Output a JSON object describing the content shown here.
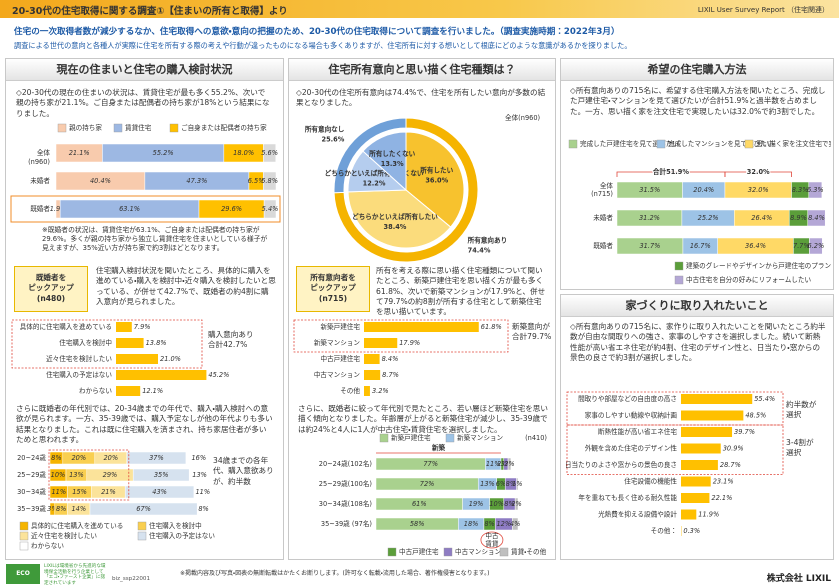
{
  "header": {
    "title": "20-30代の住宅取得に関する調査①【住まいの所有と取得】より",
    "brand": "LIXIL User Survey Report （住宅関連）"
  },
  "intro": [
    "住宅の一次取得者数が減少するなか、住宅取得への意欲・意向の把握のため、20-30代の住宅取得について調査を行いました。（調査実施時期：2022年3月）",
    "調査による世代の意向と各種人が実際に住宅を所有する際の考えや行動が違ったものになる場合も多くありますが、住宅所有に対する想いとして根底にどのような意識があるかを探りました。"
  ],
  "left": {
    "title": "現在の住まいと住宅の購入検討状況",
    "text": "◇20-30代の現在の住まいの状況は、賃貸住宅が最も多く55.2%、次いで親の持ち家が21.1%。ご自身または配偶者の持ち家が18%という結果になりました。",
    "chart1": {
      "categories": [
        "全体",
        "未婚者",
        "既婚者"
      ],
      "n": "(n960)",
      "xlim": [
        0,
        100
      ],
      "series": [
        {
          "name": "親の持ち家",
          "color": "#f8cbad",
          "values": [
            21.1,
            40.4,
            1.9
          ],
          "value_labels": [
            "21.1%",
            "40.4%",
            "1.9%"
          ]
        },
        {
          "name": "賃貸住宅",
          "color": "#9db8e3",
          "values": [
            55.2,
            47.3,
            63.1
          ],
          "value_labels": [
            "55.2%",
            "47.3%",
            "63.1%"
          ]
        },
        {
          "name": "ご自身または配偶者の持ち家",
          "color": "#ffc000",
          "values": [
            18.0,
            6.5,
            29.6
          ],
          "value_labels": [
            "18.0%",
            "6.5%",
            "29.6%"
          ]
        },
        {
          "color": "#d9d9d9",
          "values": [
            5.6,
            5.8,
            5.4
          ],
          "value_labels": [
            "5.6%",
            "5.8%",
            "5.4%"
          ]
        }
      ]
    },
    "note": "※既婚者の状況は、賃貸住宅が63.1%、ご自身または配偶者の持ち家が29.6%。多くが親の持ち家から独立し賃貸住宅を住まいとしている様子が見えますが、35%近い方が持ち家で約3割ほどとなります。",
    "badge": "既婚者を\nピックアップ\n(n480)",
    "pickup": "住宅購入検討状況を聞いたところ、具体的に購入を進めている・購入を検討中・近々購入を検討したいと思っている、が併せて42.7%で、既婚者の約4割に購入意向が見られました。",
    "chart2": {
      "categories": [
        "具体的に住宅購入を進めている",
        "住宅購入を検討中",
        "近々住宅を検討したい",
        "住宅購入の予定はない",
        "わからない"
      ],
      "values": [
        7.9,
        13.8,
        21.0,
        45.2,
        12.1
      ],
      "value_labels": [
        "7.9%",
        "13.8%",
        "21.0%",
        "45.2%",
        "12.1%"
      ],
      "color": "#ffc000",
      "xlim": [
        0,
        60
      ],
      "callout": "購入意向あり\n合計42.7%"
    },
    "text2": "さらに既婚者の年代別では、20-34歳までの年代で、購入・購入検討への意欲が見られます。一方、35-39歳では、購入予定なしが他の年代よりも多い結果となりました。これは既に住宅購入を済まされ、持ち家居住者が多いためと思われます。",
    "chart3": {
      "categories": [
        "20~24歳",
        "25~29歳",
        "30~34歳",
        "35~39歳"
      ],
      "xlim": [
        0,
        100
      ],
      "series": [
        {
          "name": "具体的に住宅購入を進めている",
          "color": "#f5b400",
          "values": [
            8,
            10,
            11,
            3
          ],
          "value_labels": [
            "8%",
            "10%",
            "11%",
            "3%"
          ]
        },
        {
          "name": "住宅購入を検討中",
          "color": "#f9cf50",
          "values": [
            20,
            13,
            15,
            8
          ],
          "value_labels": [
            "20%",
            "13%",
            "15%",
            "8%"
          ]
        },
        {
          "name": "近々住宅を検討したい",
          "color": "#fbe39a",
          "values": [
            20,
            29,
            21,
            14
          ],
          "value_labels": [
            "20%",
            "29%",
            "21%",
            "14%"
          ]
        },
        {
          "name": "住宅購入の予定はない",
          "color": "#d6e2ef",
          "values": [
            37,
            35,
            43,
            67
          ],
          "value_labels": [
            "37%",
            "35%",
            "43%",
            "67%"
          ]
        },
        {
          "name": "わからない",
          "color": "#ffffff",
          "values": [
            16,
            13,
            11,
            8
          ],
          "value_labels": [
            "16%",
            "13%",
            "11%",
            "8%"
          ]
        }
      ],
      "callout": "34歳までの各年代、購入意欲ありが、約半数"
    }
  },
  "middle": {
    "title": "住宅所有意向と思い描く住宅種類は？",
    "text": "◇20-30代の住宅所有意向は74.4%で、住宅を所有したい意向が多数の結果となりました。",
    "n": "全体(n960)",
    "donut": {
      "outer": {
        "categories": [
          "所有意向あり",
          "所有意向なし"
        ],
        "values": [
          74.4,
          25.6
        ],
        "value_labels": [
          "74.4%",
          "25.6%"
        ],
        "colors": [
          "#f5b400",
          "#6fa0d8"
        ]
      },
      "inner": {
        "categories": [
          "所有したい",
          "どちらかといえば所有したい",
          "どちらかといえば所有したくない",
          "所有したくない"
        ],
        "values": [
          36.0,
          38.4,
          12.2,
          13.3
        ],
        "value_labels": [
          "36.0%",
          "38.4%",
          "12.2%",
          "13.3%"
        ],
        "colors": [
          "#f7c22e",
          "#fbdc7c",
          "#b5cdee",
          "#8fb3e3"
        ]
      }
    },
    "badge": "所有意向者を\nピックアップ\n(n715)",
    "pickup": "所有を考える際に思い描く住宅種類について聞いたところ、新築戸建住宅を思い描く方が最も多く61.8%、次いで新築マンションが17.9%と、併せて79.7%の約8割が所有する住宅として新築住宅を思い描いています。",
    "chart4": {
      "categories": [
        "新築戸建住宅",
        "新築マンション",
        "中古戸建住宅",
        "中古マンション",
        "その他"
      ],
      "values": [
        61.8,
        17.9,
        8.4,
        8.7,
        3.2
      ],
      "value_labels": [
        "61.8%",
        "17.9%",
        "8.4%",
        "8.7%",
        "3.2%"
      ],
      "color": "#ffc000",
      "xlim": [
        0,
        70
      ],
      "callout": "新築意向が\n合計79.7%"
    },
    "text2": "さらに、既婚者に絞って年代別で見たところ、若い層ほど新築住宅を思い描く傾向となりました。年齢層が上がると新築住宅が減少し、35-39歳では約24%と4人に1人が中古住宅・賃貸住宅を選択しました。",
    "chart5": {
      "n": "(n410)",
      "categories": [
        "20~24歳(102名)",
        "25~29歳(100名)",
        "30~34歳(108名)",
        "35~39歳 (97名)"
      ],
      "xlim": [
        0,
        100
      ],
      "series": [
        {
          "name": "新築戸建住宅",
          "color": "#a9d18e",
          "values": [
            77,
            72,
            61,
            58
          ],
          "value_labels": [
            "77%",
            "72%",
            "61%",
            "58%"
          ]
        },
        {
          "name": "新築マンション",
          "color": "#9dc3e6",
          "values": [
            11,
            13,
            19,
            18
          ],
          "value_labels": [
            "11%",
            "13%",
            "19%",
            "18%"
          ]
        },
        {
          "name": "中古戸建住宅",
          "color": "#5b9e3a",
          "values": [
            2,
            6,
            10,
            8
          ],
          "value_labels": [
            "2%",
            "6%",
            "10%",
            "8%"
          ]
        },
        {
          "name": "中古マンション",
          "color": "#8e7cc3",
          "values": [
            3,
            8,
            8,
            12
          ],
          "value_labels": [
            "3%",
            "8%",
            "8%",
            "12%"
          ]
        },
        {
          "name": "賃貸・その他",
          "color": "#bfbfbf",
          "values": [
            2,
            1,
            2,
            4
          ],
          "value_labels": [
            "2%",
            "1%",
            "2%",
            "4%"
          ]
        }
      ],
      "group_new": "新築",
      "group_used": "中古\n賃貸"
    }
  },
  "right": {
    "title1": "希望の住宅購入方法",
    "text1": "◇所有意向ありの715名に、希望する住宅購入方法を聞いたところ、完成した戸建住宅・マンションを見て選びたいが合計51.9%と過半数を占めました。一方、思い描く家を注文住宅で実現したいは32.0%で約3割でした。",
    "chart6": {
      "categories": [
        "全体\n(n715)",
        "未婚者",
        "既婚者"
      ],
      "xlim": [
        0,
        100
      ],
      "brackets": [
        "合計51.9%",
        "32.0%"
      ],
      "series": [
        {
          "name": "完成した戸建住宅を見て選びたい",
          "color": "#a9d18e",
          "values": [
            31.5,
            31.2,
            31.7
          ],
          "value_labels": [
            "31.5%",
            "31.2%",
            "31.7%"
          ]
        },
        {
          "name": "完成したマンションを見て選びたい",
          "color": "#9dc3e6",
          "values": [
            20.4,
            25.2,
            16.7
          ],
          "value_labels": [
            "20.4%",
            "25.2%",
            "16.7%"
          ]
        },
        {
          "name": "思い描く家を注文住宅で実現したい",
          "color": "#ffd966",
          "values": [
            32.0,
            26.4,
            36.4
          ],
          "value_labels": [
            "32.0%",
            "26.4%",
            "36.4%"
          ]
        },
        {
          "name": "建築のグレードやデザインから戸建住宅のプランを選びたい",
          "color": "#5b9e3a",
          "values": [
            8.3,
            8.9,
            7.7
          ],
          "value_labels": [
            "8.3%",
            "8.9%",
            "7.7%"
          ]
        },
        {
          "name": "中古住宅を自分の好みにリフォームしたい",
          "color": "#b4a7d6",
          "values": [
            6.3,
            8.4,
            6.2
          ],
          "value_labels": [
            "6.3%",
            "8.4%",
            "6.2%"
          ]
        }
      ]
    },
    "title2": "家づくりに取り入れたいこと",
    "text2": "◇所有意向ありの715名に、家作りに取り入れたいことを聞いたところ約半数が自由な間取りへの強さ、家事のしやすさを選択しました。続いて断熱性能が高い省エネ住宅が約4割、住宅のデザイン性と、日当たり・窓からの景色の良さで約3割が選択しました。",
    "chart7": {
      "categories": [
        "間取りや部屋などの自由度の高さ",
        "家事のしやすい動線や収納計画",
        "断熱性能が高い省エネ住宅",
        "外観を含めた住宅のデザイン性",
        "日当たりのよさや窓からの景色の良さ",
        "住宅設備の機能性",
        "年を重ねても長く住める耐久性能",
        "光熱費を抑える設備や設計",
        "その他："
      ],
      "values": [
        55.4,
        48.5,
        39.7,
        30.9,
        28.7,
        23.1,
        22.1,
        11.9,
        0.3
      ],
      "value_labels": [
        "55.4%",
        "48.5%",
        "39.7%",
        "30.9%",
        "28.7%",
        "23.1%",
        "22.1%",
        "11.9%",
        "0.3%"
      ],
      "color": "#ffc000",
      "xlim": [
        0,
        70
      ],
      "callouts": [
        "約半数が\n選択",
        "3-4割が\n選択"
      ]
    }
  },
  "footer": {
    "logo": "ECO FIRST",
    "eco_text": "LIXILは環境省から先進的な環境保全活動を行う企業として「エコ・ファースト企業」に認定されています",
    "code": "biz_ssp22001",
    "notice": "※掲載内容及び写真・図表の無断転載はかたくお断りします。(許可なく転載・流用した場合、著作権侵害となります。)",
    "company": "株式会社 LIXIL"
  }
}
